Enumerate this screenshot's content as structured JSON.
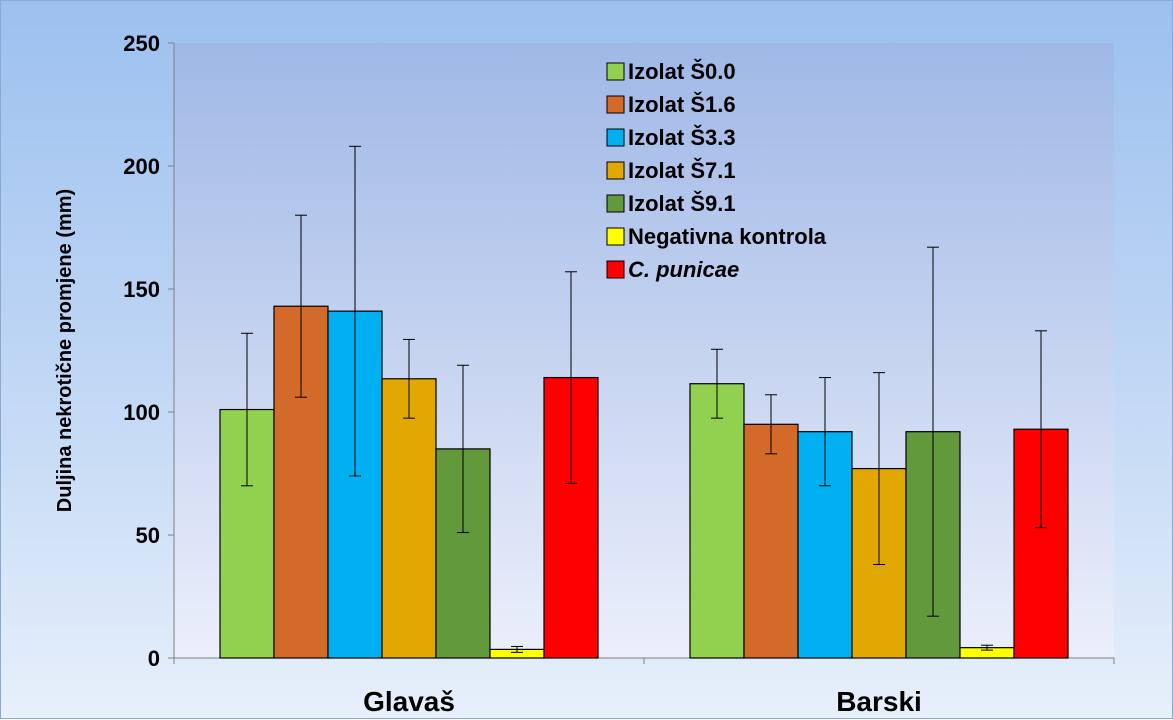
{
  "chart_data": {
    "type": "bar",
    "title": "",
    "xlabel": "",
    "ylabel": "Duljina nekrotične promjene (mm)",
    "ylim": [
      0,
      250
    ],
    "yticks": [
      0,
      50,
      100,
      150,
      200,
      250
    ],
    "grid": false,
    "legend_position": "top-right",
    "categories": [
      "Glavaš",
      "Barski"
    ],
    "series": [
      {
        "name": "Izolat Š0.0",
        "color": "#92d050",
        "values": [
          101,
          111.5
        ],
        "errors": [
          31,
          14
        ]
      },
      {
        "name": "Izolat Š1.6",
        "color": "#d46a2a",
        "values": [
          143,
          95
        ],
        "errors": [
          37,
          12
        ]
      },
      {
        "name": "Izolat Š3.3",
        "color": "#00b0f0",
        "values": [
          141,
          92
        ],
        "errors": [
          67,
          22
        ]
      },
      {
        "name": "Izolat Š7.1",
        "color": "#e0a800",
        "values": [
          113.5,
          77
        ],
        "errors": [
          16,
          39
        ]
      },
      {
        "name": "Izolat Š9.1",
        "color": "#61993b",
        "values": [
          85,
          92
        ],
        "errors": [
          34,
          75
        ]
      },
      {
        "name": "Negativna kontrola",
        "color": "#ffff00",
        "values": [
          3.5,
          4.2
        ],
        "errors": [
          1.2,
          1
        ]
      },
      {
        "name": "C. punicae",
        "color": "#ff0000",
        "italic": true,
        "values": [
          114,
          93
        ],
        "errors": [
          43,
          40
        ]
      }
    ]
  }
}
